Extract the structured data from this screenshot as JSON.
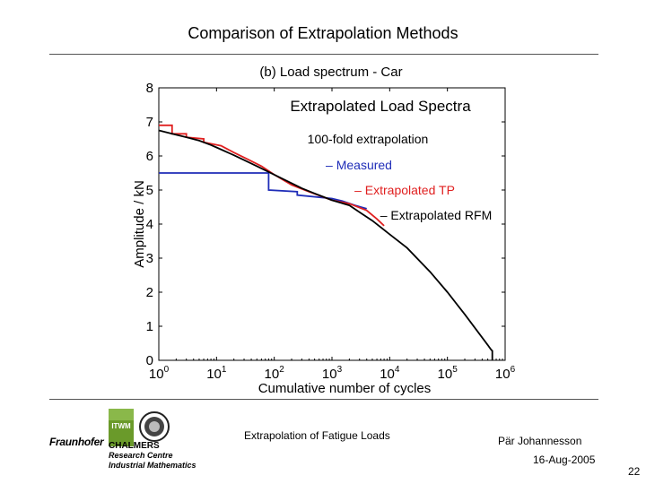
{
  "slide": {
    "title": "Comparison of Extrapolation Methods",
    "footer_center": "Extrapolation of Fatigue Loads",
    "footer_author": "Pär Johannesson",
    "footer_date": "16-Aug-2005",
    "page_number": "22"
  },
  "logos": {
    "fraunhofer": "Fraunhofer",
    "itwm": "ITWM",
    "chalmers": "CHALMERS",
    "research_centre": "Research Centre",
    "industrial_mathematics": "Industrial Mathematics",
    "brand_green": "#6a9a2a"
  },
  "chart_data": {
    "type": "line",
    "title": "(b) Load spectrum - Car",
    "xlabel": "Cumulative number of cycles",
    "ylabel": "Amplitude / kN",
    "x_scale": "log",
    "xlim": [
      1,
      1000000
    ],
    "ylim": [
      0,
      8
    ],
    "x_ticks": [
      {
        "value": 1,
        "base": "10",
        "exp": "0"
      },
      {
        "value": 10,
        "base": "10",
        "exp": "1"
      },
      {
        "value": 100,
        "base": "10",
        "exp": "2"
      },
      {
        "value": 1000,
        "base": "10",
        "exp": "3"
      },
      {
        "value": 10000,
        "base": "10",
        "exp": "4"
      },
      {
        "value": 100000,
        "base": "10",
        "exp": "5"
      },
      {
        "value": 1000000,
        "base": "10",
        "exp": "6"
      }
    ],
    "y_ticks": [
      "0",
      "1",
      "2",
      "3",
      "4",
      "5",
      "6",
      "7",
      "8"
    ],
    "grid": false,
    "annotations": {
      "heading": "Extrapolated Load Spectra",
      "subheading": "100-fold extrapolation"
    },
    "series": [
      {
        "name": "– Measured",
        "color": "#1f2db8",
        "step": true,
        "x": [
          1,
          80,
          80,
          250,
          250,
          1000,
          1500,
          2500,
          4000
        ],
        "y": [
          5.5,
          5.5,
          5.0,
          4.95,
          4.85,
          4.75,
          4.68,
          4.55,
          4.45
        ]
      },
      {
        "name": "– Extrapolated TP",
        "color": "#e02020",
        "step": true,
        "x": [
          1,
          1.7,
          1.7,
          3,
          3,
          6,
          6,
          12,
          20,
          35,
          60,
          100,
          200,
          400,
          700,
          1000,
          2000,
          4000,
          6000,
          8000
        ],
        "y": [
          6.9,
          6.9,
          6.65,
          6.65,
          6.55,
          6.5,
          6.4,
          6.3,
          6.1,
          5.9,
          5.7,
          5.45,
          5.15,
          4.95,
          4.8,
          4.7,
          4.6,
          4.4,
          4.15,
          3.95
        ]
      },
      {
        "name": "– Extrapolated RFM",
        "color": "#000000",
        "step": false,
        "x": [
          1,
          2,
          3,
          5,
          8,
          10,
          20,
          30,
          50,
          100,
          200,
          300,
          500,
          1000,
          2000,
          3000,
          5000,
          10000,
          20000,
          50000,
          100000,
          200000,
          300000,
          500000,
          550000,
          580000,
          600000,
          600000
        ],
        "y": [
          6.75,
          6.62,
          6.55,
          6.45,
          6.32,
          6.25,
          6.02,
          5.88,
          5.7,
          5.45,
          5.2,
          5.05,
          4.9,
          4.7,
          4.55,
          4.35,
          4.1,
          3.7,
          3.3,
          2.6,
          2.0,
          1.35,
          0.95,
          0.45,
          0.35,
          0.3,
          0.28,
          0
        ]
      }
    ]
  }
}
